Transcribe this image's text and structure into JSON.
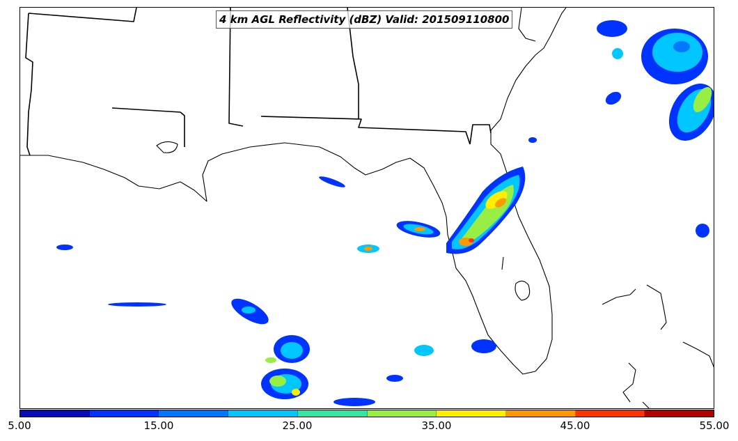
{
  "title": "4 km AGL Reflectivity (dBZ) Valid: 201509110800",
  "colorbar": {
    "colors": [
      "#0a0ab8",
      "#0033ff",
      "#0077ff",
      "#00c8ff",
      "#33e6a6",
      "#99ee44",
      "#ffee00",
      "#ff9900",
      "#ff3300",
      "#b30000"
    ],
    "tick_labels": [
      "5.00",
      "15.00",
      "25.00",
      "35.00",
      "45.00",
      "55.00"
    ],
    "min": 5,
    "max": 55,
    "interval": 5
  }
}
